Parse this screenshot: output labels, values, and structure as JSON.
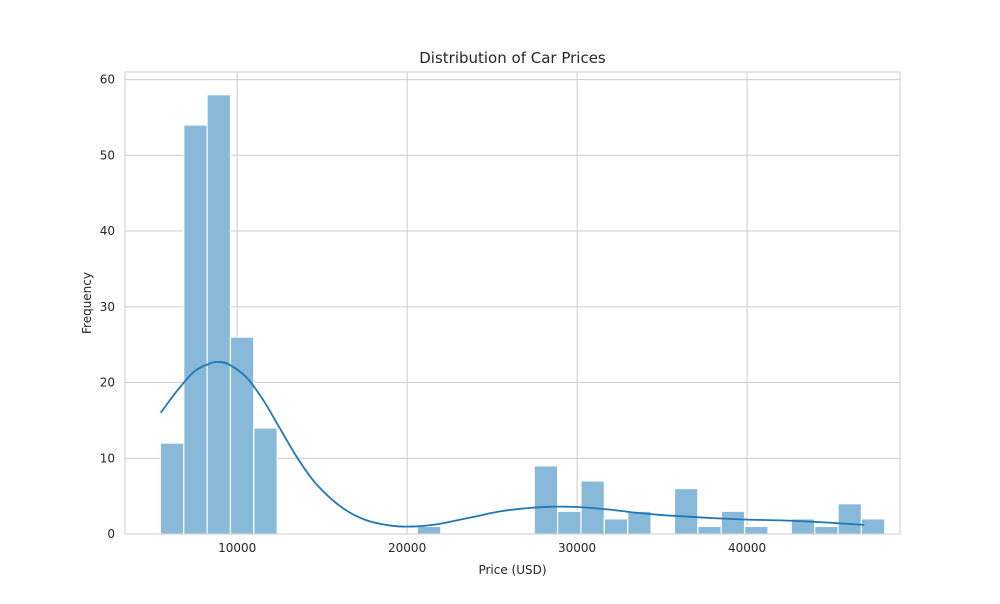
{
  "chart_data": {
    "type": "bar",
    "title": "Distribution of Car Prices",
    "xlabel": "Price (USD)",
    "ylabel": "Frequency",
    "xlim": [
      3400,
      49000
    ],
    "ylim": [
      0,
      61
    ],
    "x_ticks": [
      10000,
      20000,
      30000,
      40000
    ],
    "y_ticks": [
      0,
      10,
      20,
      30,
      40,
      50,
      60
    ],
    "grid": true,
    "legend": "none",
    "bar_color": "#89b9d8",
    "bar_edge_color": "#ffffff",
    "kde_color": "#1f77b4",
    "grid_color": "#cccccc",
    "bin_start": 5480,
    "bin_width": 1375,
    "bin_counts": [
      12,
      54,
      58,
      26,
      14,
      0,
      0,
      0,
      0,
      0,
      0,
      1,
      0,
      0,
      0,
      0,
      9,
      3,
      7,
      2,
      3,
      0,
      6,
      1,
      3,
      1,
      0,
      2,
      1,
      4,
      2
    ],
    "kde": {
      "x": [
        5500,
        6500,
        7500,
        8500,
        9000,
        9500,
        10500,
        11500,
        12500,
        13500,
        14500,
        15500,
        16500,
        17500,
        18500,
        19500,
        20500,
        21500,
        22500,
        24000,
        25500,
        27000,
        28500,
        29500,
        30500,
        32000,
        33500,
        35000,
        36500,
        38000,
        40000,
        42000,
        44000,
        45500,
        46900
      ],
      "y": [
        16,
        19,
        21.5,
        22.6,
        22.7,
        22.4,
        20.8,
        17.8,
        14,
        10.2,
        7,
        4.7,
        3,
        1.9,
        1.3,
        1.0,
        1.0,
        1.2,
        1.6,
        2.3,
        3,
        3.4,
        3.6,
        3.6,
        3.5,
        3.2,
        2.8,
        2.5,
        2.3,
        2.1,
        1.9,
        1.8,
        1.6,
        1.4,
        1.2
      ]
    }
  }
}
